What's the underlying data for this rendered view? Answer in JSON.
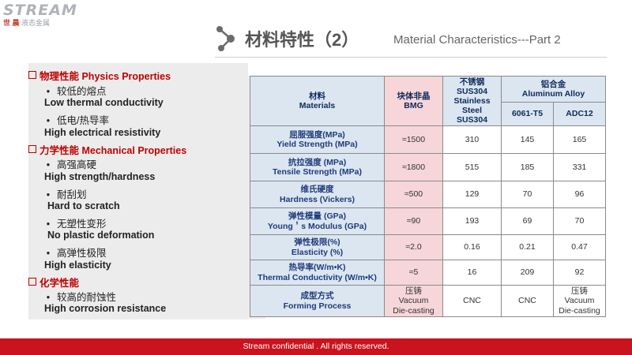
{
  "logo": {
    "main": "STREAM",
    "sub_red": "世 晨",
    "sub_gray": " 液态金属"
  },
  "title": {
    "cn": "材料特性（2）",
    "en": "Material Characteristics---Part 2"
  },
  "left": {
    "physics_head": "物理性能 Physics Properties",
    "p1_cn": "较低的熔点",
    "p1_en": "Low thermal conductivity",
    "p2_cn": "低电/热导率",
    "p2_en": "High electrical resistivity",
    "mech_head": "力学性能 Mechanical Properties",
    "m1_cn": "高强高硬",
    "m1_en": "High strength/hardness",
    "m2_cn": "耐刮划",
    "m2_en": "Hard to scratch",
    "m3_cn": "无塑性变形",
    "m3_en": "No plastic deformation",
    "m4_cn": "高弹性极限",
    "m4_en": "High elasticity",
    "chem_head": "化学性能",
    "c1_cn": "较高的耐蚀性",
    "c1_en": "High corrosion resistance",
    "bullet": "•"
  },
  "table": {
    "h_materials_cn": "材料",
    "h_materials_en": "Materials",
    "h_bmg_cn": "块体非晶",
    "h_bmg_en": "BMG",
    "h_sus_cn": "不锈钢",
    "h_sus_1": "SUS304",
    "h_sus_2": "Stainless Steel",
    "h_sus_3": "SUS304",
    "h_al_cn": "铝合金",
    "h_al_en": "Aluminum Alloy",
    "h_6061": "6061-T5",
    "h_adc": "ADC12",
    "rows": [
      {
        "cn": "屈服强度(MPa)",
        "en": "Yield Strength (MPa)",
        "bmg": "≈1500",
        "sus": "310",
        "a6061": "145",
        "adc": "165"
      },
      {
        "cn": "抗拉强度 (MPa)",
        "en": "Tensile Strength (MPa)",
        "bmg": "≈1800",
        "sus": "515",
        "a6061": "185",
        "adc": "331"
      },
      {
        "cn": "维氏硬度",
        "en": "Hardness (Vickers)",
        "bmg": "≈500",
        "sus": "129",
        "a6061": "70",
        "adc": "96"
      },
      {
        "cn": "弹性模量 (GPa)",
        "en": "Young＇s Modulus (GPa)",
        "bmg": "≈90",
        "sus": "193",
        "a6061": "69",
        "adc": "70"
      },
      {
        "cn": "弹性极限(%)",
        "en": "Elasticity (%)",
        "bmg": "≈2.0",
        "sus": "0.16",
        "a6061": "0.21",
        "adc": "0.47"
      },
      {
        "cn": "热导率(W/m•K)",
        "en": "Thermal Conductivity (W/m•K)",
        "bmg": "≈5",
        "sus": "16",
        "a6061": "209",
        "adc": "92"
      }
    ],
    "last": {
      "cn": "成型方式",
      "en": "Forming Process",
      "bmg_1": "压铸",
      "bmg_2": "Vacuum",
      "bmg_3": "Die-casting",
      "sus": "CNC",
      "a6061": "CNC",
      "adc_1": "压铸",
      "adc_2": "Vacuum",
      "adc_3": "Die-casting"
    }
  },
  "footer": {
    "text": "Stream  confidential . All  rights  reserved."
  }
}
